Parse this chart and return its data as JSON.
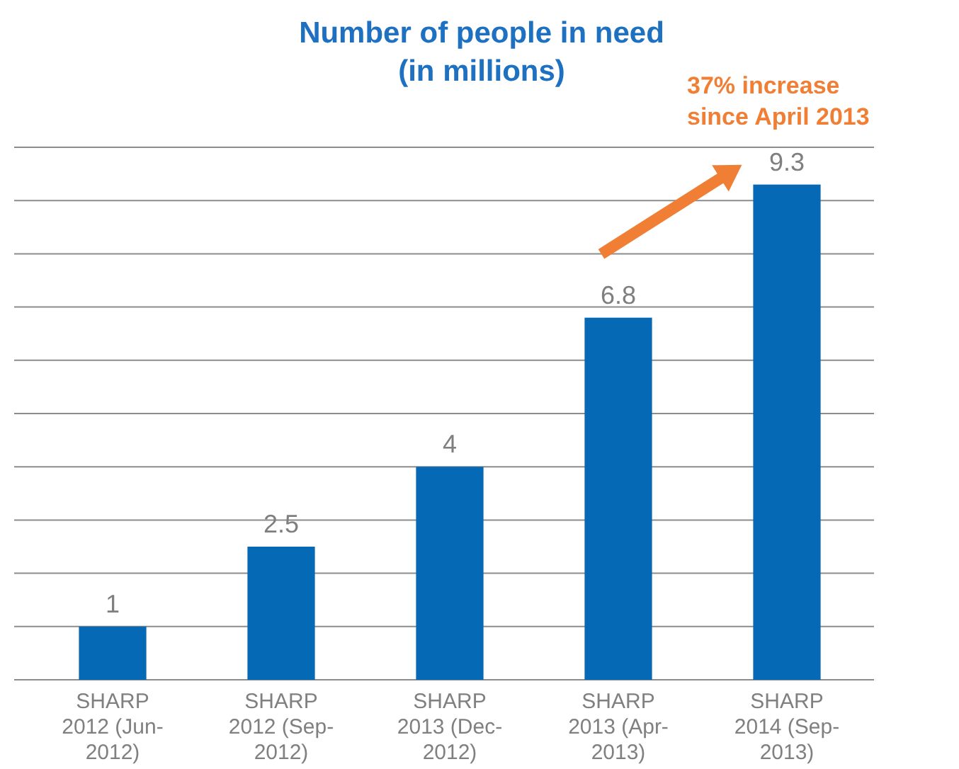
{
  "chart_data": {
    "type": "bar",
    "title": "Number of people in need\n(in millions)",
    "categories": [
      "SHARP 2012 (Jun-2012)",
      "SHARP 2012 (Sep-2012)",
      "SHARP 2013 (Dec-2012)",
      "SHARP 2013 (Apr-2013)",
      "SHARP 2014 (Sep-2013)"
    ],
    "values": [
      1,
      2.5,
      4,
      6.8,
      9.3
    ],
    "color": "#0569b5",
    "data_labels": true,
    "ylim": [
      0,
      10
    ],
    "yticks": [
      {
        "value": 0,
        "label": null
      },
      {
        "value": 1,
        "label": null
      },
      {
        "value": 2,
        "label": null
      },
      {
        "value": 3,
        "label": null
      },
      {
        "value": 4,
        "label": null
      },
      {
        "value": 5,
        "label": null
      },
      {
        "value": 6,
        "label": null
      },
      {
        "value": 7,
        "label": null
      },
      {
        "value": 8,
        "label": null
      },
      {
        "value": 9,
        "label": null
      },
      {
        "value": 10,
        "label": null
      }
    ],
    "grid": "y",
    "tick_labels": "x",
    "annotations": [
      "37% increase\nsince April 2013"
    ]
  }
}
